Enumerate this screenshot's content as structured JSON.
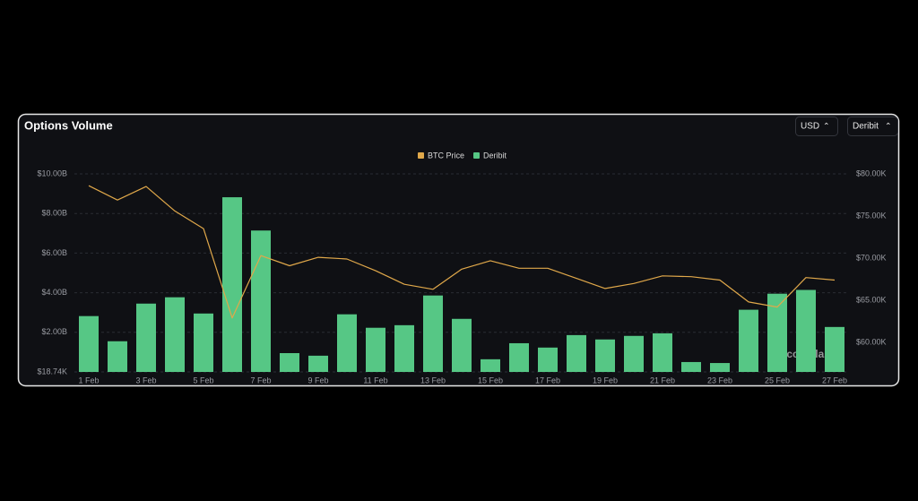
{
  "chart_data": {
    "type": "bar",
    "title": "Options Volume",
    "controls": [
      "USD",
      "Deribit"
    ],
    "watermark": "coinglass",
    "categories": [
      "1 Feb",
      null,
      "3 Feb",
      null,
      "5 Feb",
      null,
      "7 Feb",
      null,
      "9 Feb",
      null,
      "11 Feb",
      null,
      "13 Feb",
      null,
      "15 Feb",
      null,
      "17 Feb",
      null,
      "19 Feb",
      null,
      "21 Feb",
      null,
      "23 Feb",
      null,
      "25 Feb",
      null,
      "27 Feb"
    ],
    "series": [
      {
        "name": "Deribit",
        "type": "bar",
        "color": "#56c785",
        "values": [
          2820000000,
          1550000000,
          3450000000,
          3770000000,
          2950000000,
          8820000000,
          7140000000,
          950000000,
          820000000,
          2910000000,
          2230000000,
          2360000000,
          3860000000,
          2680000000,
          640000000,
          1450000000,
          1230000000,
          1860000000,
          1640000000,
          1820000000,
          1950000000,
          500000000,
          450000000,
          3140000000,
          3950000000,
          4140000000,
          2270000000
        ]
      },
      {
        "name": "BTC Price",
        "type": "line",
        "axis": "y2",
        "color": "#e0a84a",
        "values": [
          78600,
          76900,
          78500,
          75600,
          73500,
          62900,
          70300,
          69100,
          70100,
          69900,
          68500,
          66900,
          66300,
          68700,
          69700,
          68800,
          68800,
          67600,
          66400,
          67000,
          67900,
          67800,
          67400,
          64800,
          64200,
          67700,
          67400
        ]
      }
    ],
    "legend_order": [
      1,
      0
    ],
    "ylim": [
      18740,
      10000000000
    ],
    "yticks": [
      {
        "value": 18740,
        "label": "$18.74K"
      },
      {
        "value": 2000000000,
        "label": "$2.00B"
      },
      {
        "value": 4000000000,
        "label": "$4.00B"
      },
      {
        "value": 6000000000,
        "label": "$6.00B"
      },
      {
        "value": 8000000000,
        "label": "$8.00B"
      },
      {
        "value": 10000000000,
        "label": "$10.00B"
      }
    ],
    "y2lim": [
      56500,
      80000
    ],
    "y2ticks": [
      {
        "value": 60000,
        "label": "$60.00K"
      },
      {
        "value": 65000,
        "label": "$65.00K"
      },
      {
        "value": 70000,
        "label": "$70.00K"
      },
      {
        "value": 75000,
        "label": "$75.00K"
      },
      {
        "value": 80000,
        "label": "$80.00K"
      }
    ],
    "grid": true
  }
}
